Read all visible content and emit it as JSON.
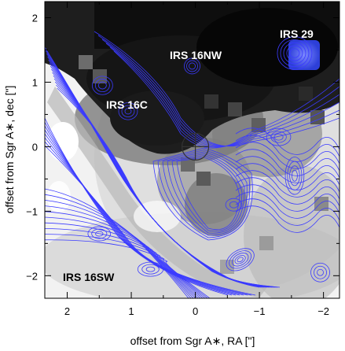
{
  "figure": {
    "x_axis_title": "offset from Sgr A∗, RA [\"]",
    "y_axis_title": "offset from Sgr A∗, dec [\"]",
    "x_range": [
      2.35,
      -2.25
    ],
    "y_range": [
      -2.35,
      2.25
    ],
    "x_ticks": [
      2,
      1,
      0,
      -1,
      -2
    ],
    "x_tick_labels": [
      "2",
      "1",
      "0",
      "−1",
      "−2"
    ],
    "y_ticks": [
      2,
      1,
      0,
      -1,
      -2
    ],
    "y_tick_labels": [
      "2",
      "1",
      "0",
      "−1",
      "−2"
    ],
    "contour_color": "#3b3bff",
    "label_color": "#ffffff",
    "dark_label_color": "#000000",
    "sources": [
      {
        "name": "IRS 29",
        "ra": -1.55,
        "dec": 1.45
      },
      {
        "name": "IRS 16NW",
        "ra": 0.05,
        "dec": 1.25
      },
      {
        "name": "IRS 16C",
        "ra": 1.1,
        "dec": 0.6
      },
      {
        "name": "IRS 16SW",
        "ra": 1.15,
        "dec": -2.15
      }
    ],
    "label_texts": [
      "IRS 29",
      "IRS 16NW",
      "IRS 16C",
      "IRS 16SW"
    ],
    "sgra_marker": {
      "ra": 0.0,
      "dec": 0.0
    }
  }
}
